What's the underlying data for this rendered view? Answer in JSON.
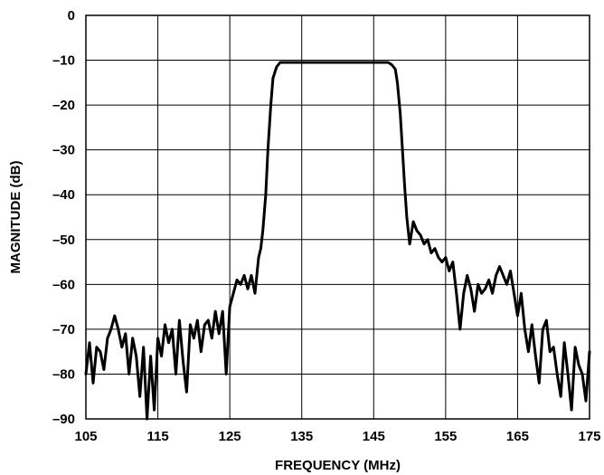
{
  "chart_data": {
    "type": "line",
    "title": "",
    "xlabel": "FREQUENCY (MHz)",
    "ylabel": "MAGNITUDE (dB)",
    "xlim": [
      105,
      175
    ],
    "ylim": [
      -90,
      0
    ],
    "x_ticks": [
      "105",
      "115",
      "125",
      "135",
      "145",
      "155",
      "165",
      "175"
    ],
    "y_ticks": [
      "0",
      "–10",
      "–20",
      "–30",
      "–40",
      "–50",
      "–60",
      "–70",
      "–80",
      "–90"
    ],
    "grid": true,
    "legend": "none",
    "line_color": "#000000",
    "series": [
      {
        "x": [
          105,
          105.5,
          106,
          106.5,
          107,
          107.5,
          108,
          108.5,
          109,
          109.5,
          110,
          110.5,
          111,
          111.5,
          112,
          112.5,
          113,
          113.5,
          114,
          114.5,
          115,
          115.5,
          116,
          116.5,
          117,
          117.5,
          118,
          118.5,
          119,
          119.5,
          120,
          120.5,
          121,
          121.5,
          122,
          122.5,
          123,
          123.5,
          124,
          124.5,
          125,
          125.5,
          126,
          126.5,
          127,
          127.5,
          128,
          128.5,
          129,
          129.3,
          129.6,
          130,
          130.3,
          130.7,
          131,
          131.5,
          132,
          133,
          134,
          135,
          136,
          137,
          138,
          139,
          140,
          141,
          142,
          143,
          144,
          145,
          146,
          147,
          147.5,
          148,
          148.3,
          148.7,
          149,
          149.3,
          149.6,
          150,
          150.5,
          151,
          151.5,
          152,
          152.5,
          153,
          153.5,
          154,
          154.5,
          155,
          155.5,
          156,
          156.5,
          157,
          157.5,
          158,
          158.5,
          159,
          159.5,
          160,
          160.5,
          161,
          161.5,
          162,
          162.5,
          163,
          163.5,
          164,
          164.5,
          165,
          165.5,
          166,
          166.5,
          167,
          167.5,
          168,
          168.5,
          169,
          169.5,
          170,
          170.5,
          171,
          171.5,
          172,
          172.5,
          173,
          173.5,
          174,
          174.5,
          175
        ],
        "y": [
          -80,
          -73,
          -82,
          -74,
          -75,
          -79,
          -72,
          -70,
          -67,
          -70,
          -74,
          -71,
          -80,
          -72,
          -76,
          -85,
          -74,
          -90,
          -76,
          -88,
          -72,
          -76,
          -69,
          -73,
          -70,
          -80,
          -68,
          -77,
          -84,
          -69,
          -72,
          -68,
          -75,
          -69,
          -68,
          -72,
          -66,
          -71,
          -66,
          -80,
          -65,
          -62,
          -59,
          -60,
          -58,
          -61,
          -58,
          -62,
          -54,
          -52,
          -48,
          -40,
          -30,
          -20,
          -14,
          -11.5,
          -10.5,
          -10.5,
          -10.5,
          -10.5,
          -10.5,
          -10.5,
          -10.5,
          -10.5,
          -10.5,
          -10.5,
          -10.5,
          -10.5,
          -10.5,
          -10.5,
          -10.5,
          -10.5,
          -11,
          -12,
          -15,
          -22,
          -30,
          -38,
          -45,
          -51,
          -46,
          -48,
          -49,
          -51,
          -50,
          -53,
          -52,
          -54,
          -55,
          -54,
          -57,
          -55,
          -62,
          -70,
          -62,
          -58,
          -61,
          -66,
          -60,
          -62,
          -61,
          -59,
          -62,
          -58,
          -56,
          -58,
          -60,
          -57,
          -62,
          -67,
          -62,
          -70,
          -75,
          -69,
          -76,
          -82,
          -70,
          -68,
          -75,
          -74,
          -80,
          -85,
          -73,
          -80,
          -88,
          -74,
          -78,
          -80,
          -86,
          -75
        ]
      }
    ]
  }
}
